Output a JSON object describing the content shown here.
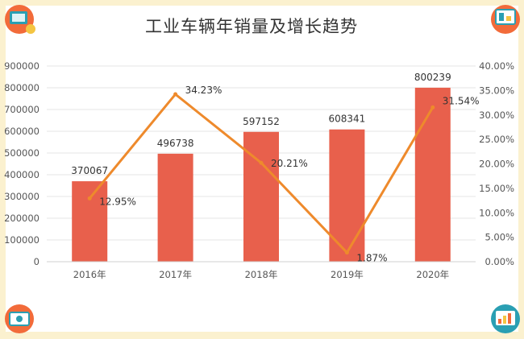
{
  "chart_data": {
    "type": "bar+line",
    "title": "工业车辆年销量及增长趋势",
    "categories": [
      "2016年",
      "2017年",
      "2018年",
      "2019年",
      "2020年"
    ],
    "series": [
      {
        "type": "bar",
        "axis": "left",
        "values": [
          370067,
          496738,
          597152,
          608341,
          800239
        ],
        "labels": [
          "370067",
          "496738",
          "597152",
          "608341",
          "800239"
        ],
        "color": "#e8604c"
      },
      {
        "type": "line",
        "axis": "right",
        "values": [
          12.95,
          34.23,
          20.21,
          1.87,
          31.54
        ],
        "labels": [
          "12.95%",
          "34.23%",
          "20.21%",
          "1.87%",
          "31.54%"
        ],
        "color": "#ee8a2c"
      }
    ],
    "y_left": {
      "ylim": [
        0,
        900000
      ],
      "ticks": [
        "0",
        "100000",
        "200000",
        "300000",
        "400000",
        "500000",
        "600000",
        "700000",
        "800000",
        "900000"
      ]
    },
    "y_right": {
      "ylim": [
        0,
        40
      ],
      "ticks": [
        "0.00%",
        "5.00%",
        "10.00%",
        "15.00%",
        "20.00%",
        "25.00%",
        "30.00%",
        "35.00%",
        "40.00%"
      ]
    },
    "grid": true,
    "legend": "none"
  },
  "decorations": [
    "presentation-illustration-top-left",
    "presentation-illustration-top-right",
    "presentation-illustration-bottom-left",
    "presentation-illustration-bottom-right"
  ]
}
